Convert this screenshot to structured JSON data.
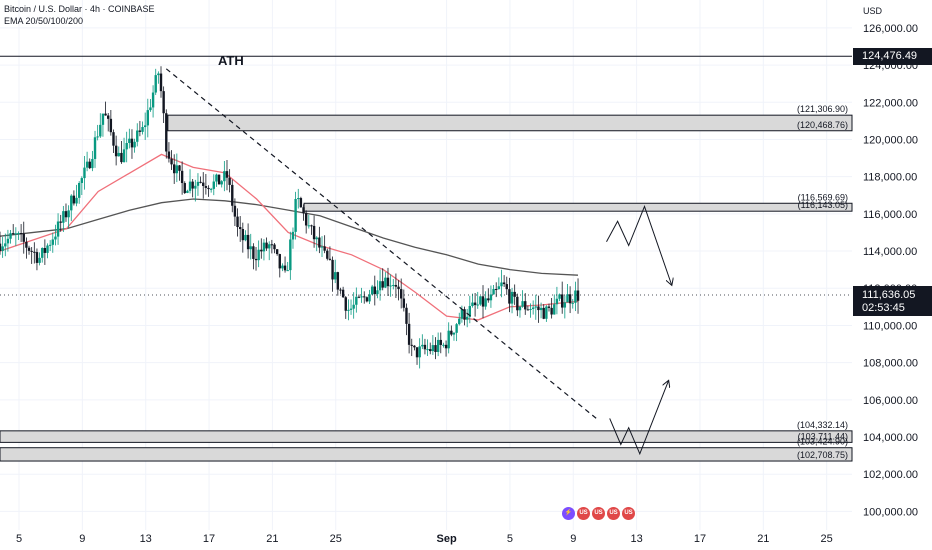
{
  "header": {
    "title": "Bitcoin / U.S. Dollar · 4h · COINBASE",
    "indicator": "EMA 20/50/100/200",
    "currency": "USD"
  },
  "annotation": {
    "ath_label": "ATH"
  },
  "live_price": {
    "price": "111,636.05",
    "countdown": "02:53:45",
    "value": 111636.05
  },
  "ath_tag": {
    "price": "124,476.49",
    "value": 124476.49
  },
  "event_icons": [
    "⚡",
    "US",
    "US",
    "US",
    "US"
  ],
  "colors": {
    "up": "#089981",
    "down": "#131722",
    "ema_fast": "#f0707a",
    "ema_slow": "#555555",
    "zone": "#d9d9d9",
    "grid": "#f0f3fa",
    "axis_text": "#131722"
  },
  "chart_data": {
    "type": "candlestick",
    "title": "Bitcoin / U.S. Dollar · 4h · COINBASE",
    "ylim": [
      99000,
      127500
    ],
    "y_ticks": [
      "100,000.00",
      "102,000.00",
      "104,000.00",
      "106,000.00",
      "108,000.00",
      "110,000.00",
      "112,000.00",
      "114,000.00",
      "116,000.00",
      "118,000.00",
      "120,000.00",
      "122,000.00",
      "124,000.00",
      "126,000.00"
    ],
    "y_tick_values": [
      100000,
      102000,
      104000,
      106000,
      108000,
      110000,
      112000,
      114000,
      116000,
      118000,
      120000,
      122000,
      124000,
      126000
    ],
    "x_ticks": [
      "5",
      "9",
      "13",
      "17",
      "21",
      "25",
      "Sep",
      "5",
      "9",
      "13",
      "17",
      "21",
      "25"
    ],
    "x_tick_days": [
      5,
      9,
      13,
      17,
      21,
      25,
      32,
      36,
      40,
      44,
      48,
      52,
      56
    ],
    "x_range_days": [
      3.8,
      57.6
    ],
    "last_candle_day": 40.3,
    "ath_line": 124476.49,
    "zones": [
      {
        "top": 121306.9,
        "bottom": 120468.76,
        "top_label": "(121,306.90)",
        "bottom_label": "(120,468.76)",
        "x_start_day": 14.4
      },
      {
        "top": 116569.69,
        "bottom": 116143.05,
        "top_label": "(116,569.69)",
        "bottom_label": "(116,143.05)",
        "x_start_day": 23.0
      },
      {
        "top": 104332.14,
        "bottom": 103711.44,
        "top_label": "(104,332.14)",
        "bottom_label": "(103,711.44)",
        "x_start_day": 3.8
      },
      {
        "top": 103424.9,
        "bottom": 102708.75,
        "top_label": "(103,424.90)",
        "bottom_label": "(102,708.75)",
        "x_start_day": 3.8
      }
    ],
    "trendline": [
      {
        "x": 14.3,
        "y": 123800
      },
      {
        "x": 41.6,
        "y": 104900
      }
    ],
    "anchor_points": [
      {
        "x": 3.8,
        "y": 114400
      },
      {
        "x": 5,
        "y": 114800
      },
      {
        "x": 6.5,
        "y": 113600
      },
      {
        "x": 8,
        "y": 115800
      },
      {
        "x": 9.5,
        "y": 118500
      },
      {
        "x": 10.5,
        "y": 121500
      },
      {
        "x": 11.5,
        "y": 119000
      },
      {
        "x": 13,
        "y": 120500
      },
      {
        "x": 14.0,
        "y": 123700
      },
      {
        "x": 14.5,
        "y": 119500
      },
      {
        "x": 15.5,
        "y": 117500
      },
      {
        "x": 16.5,
        "y": 117800
      },
      {
        "x": 17.5,
        "y": 117600
      },
      {
        "x": 18.3,
        "y": 118000
      },
      {
        "x": 19.0,
        "y": 115000
      },
      {
        "x": 20.0,
        "y": 113800
      },
      {
        "x": 21.0,
        "y": 114300
      },
      {
        "x": 22.0,
        "y": 112500
      },
      {
        "x": 22.7,
        "y": 116800
      },
      {
        "x": 23.5,
        "y": 115200
      },
      {
        "x": 25.0,
        "y": 112800
      },
      {
        "x": 26.0,
        "y": 110800
      },
      {
        "x": 27.0,
        "y": 111500
      },
      {
        "x": 28.0,
        "y": 112500
      },
      {
        "x": 29.0,
        "y": 112300
      },
      {
        "x": 30.0,
        "y": 108500
      },
      {
        "x": 31.0,
        "y": 108700
      },
      {
        "x": 32.0,
        "y": 108900
      },
      {
        "x": 33.0,
        "y": 110500
      },
      {
        "x": 34.0,
        "y": 111000
      },
      {
        "x": 35.0,
        "y": 111400
      },
      {
        "x": 35.7,
        "y": 112200
      },
      {
        "x": 36.5,
        "y": 111100
      },
      {
        "x": 37.5,
        "y": 111000
      },
      {
        "x": 38.5,
        "y": 110700
      },
      {
        "x": 39.5,
        "y": 111400
      },
      {
        "x": 40.3,
        "y": 111636
      }
    ],
    "ema_fast": [
      {
        "x": 3.8,
        "y": 114000
      },
      {
        "x": 8,
        "y": 115200
      },
      {
        "x": 10,
        "y": 117200
      },
      {
        "x": 12,
        "y": 118200
      },
      {
        "x": 14,
        "y": 119200
      },
      {
        "x": 16,
        "y": 118500
      },
      {
        "x": 18,
        "y": 118200
      },
      {
        "x": 20,
        "y": 116800
      },
      {
        "x": 22,
        "y": 115000
      },
      {
        "x": 24,
        "y": 114300
      },
      {
        "x": 26,
        "y": 113800
      },
      {
        "x": 28,
        "y": 113000
      },
      {
        "x": 30,
        "y": 111800
      },
      {
        "x": 32,
        "y": 110500
      },
      {
        "x": 34,
        "y": 110300
      },
      {
        "x": 36,
        "y": 111000
      },
      {
        "x": 38,
        "y": 111100
      },
      {
        "x": 40.3,
        "y": 111300
      }
    ],
    "ema_slow": [
      {
        "x": 3.8,
        "y": 114800
      },
      {
        "x": 8,
        "y": 115200
      },
      {
        "x": 10,
        "y": 115700
      },
      {
        "x": 12,
        "y": 116200
      },
      {
        "x": 14,
        "y": 116600
      },
      {
        "x": 16,
        "y": 116800
      },
      {
        "x": 18,
        "y": 116700
      },
      {
        "x": 20,
        "y": 116500
      },
      {
        "x": 22,
        "y": 116200
      },
      {
        "x": 24,
        "y": 115900
      },
      {
        "x": 26,
        "y": 115300
      },
      {
        "x": 28,
        "y": 114700
      },
      {
        "x": 30,
        "y": 114200
      },
      {
        "x": 32,
        "y": 113800
      },
      {
        "x": 34,
        "y": 113300
      },
      {
        "x": 36,
        "y": 113000
      },
      {
        "x": 38,
        "y": 112800
      },
      {
        "x": 40.3,
        "y": 112700
      }
    ],
    "projection_up": [
      {
        "x": 42.1,
        "y": 114500
      },
      {
        "x": 42.8,
        "y": 115600
      },
      {
        "x": 43.5,
        "y": 114300
      },
      {
        "x": 44.5,
        "y": 116400
      },
      {
        "x": 46.2,
        "y": 112200
      }
    ],
    "projection_down": [
      {
        "x": 42.3,
        "y": 105000
      },
      {
        "x": 43.0,
        "y": 103600
      },
      {
        "x": 43.5,
        "y": 104500
      },
      {
        "x": 44.2,
        "y": 103100
      },
      {
        "x": 46.0,
        "y": 107000
      }
    ]
  }
}
